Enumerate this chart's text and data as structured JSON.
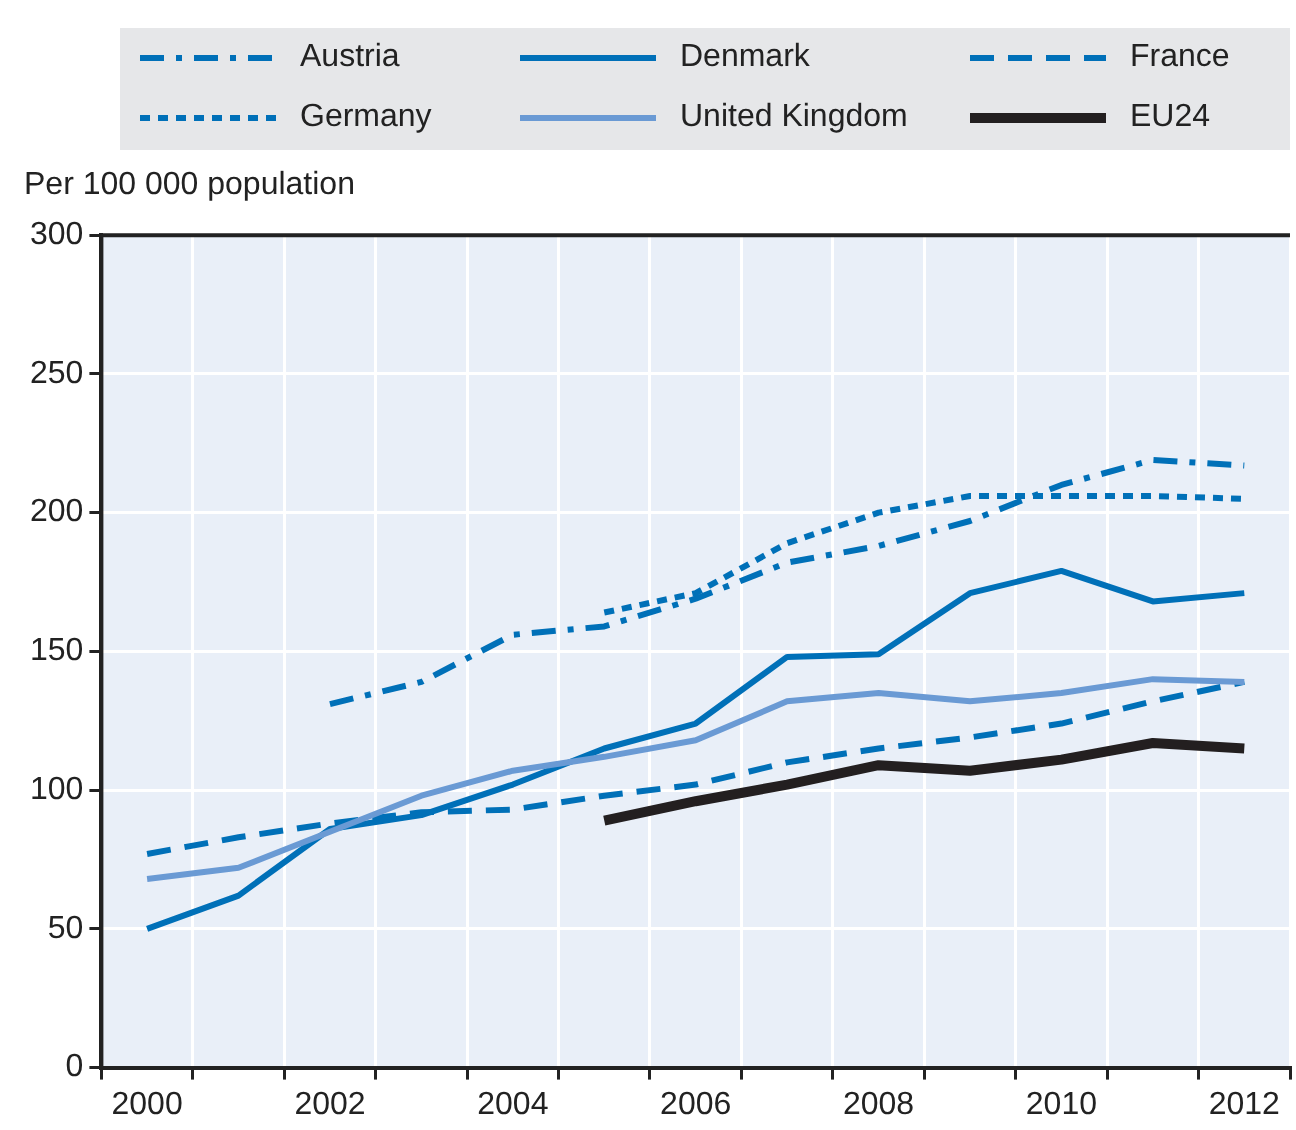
{
  "chart_data": {
    "type": "line",
    "ylabel": "Per 100 000 population",
    "categories": [
      "2000",
      null,
      "2002",
      null,
      "2004",
      null,
      "2006",
      null,
      "2008",
      null,
      "2010",
      null,
      "2012"
    ],
    "series": [
      {
        "name": "Austria",
        "color": "#0070b8",
        "line_style": "dashdot",
        "values": [
          null,
          null,
          131,
          139,
          156,
          159,
          169,
          182,
          188,
          197,
          210,
          219,
          217
        ]
      },
      {
        "name": "Denmark",
        "color": "#0070b8",
        "line_style": "solid",
        "values": [
          50,
          62,
          86,
          91,
          102,
          115,
          124,
          148,
          149,
          171,
          179,
          168,
          171
        ]
      },
      {
        "name": "France",
        "color": "#0070b8",
        "line_style": "dashed",
        "values": [
          77,
          83,
          88,
          92,
          93,
          98,
          102,
          110,
          115,
          119,
          124,
          132,
          139
        ]
      },
      {
        "name": "Germany",
        "color": "#0070b8",
        "line_style": "dotted",
        "values": [
          null,
          null,
          null,
          null,
          null,
          164,
          171,
          189,
          200,
          206,
          206,
          206,
          205
        ]
      },
      {
        "name": "United Kingdom",
        "color": "#6a9ad4",
        "line_style": "solid",
        "values": [
          68,
          72,
          85,
          98,
          107,
          112,
          118,
          132,
          135,
          132,
          135,
          140,
          139
        ]
      },
      {
        "name": "EU24",
        "color": "#231f20",
        "line_style": "solid",
        "values": [
          null,
          null,
          null,
          null,
          null,
          89,
          96,
          102,
          109,
          107,
          111,
          117,
          115
        ]
      }
    ],
    "ylim": [
      0,
      300
    ],
    "yticks": [
      0,
      50,
      100,
      150,
      200,
      250,
      300
    ],
    "grid": true,
    "legend": "top",
    "marker": "none"
  }
}
